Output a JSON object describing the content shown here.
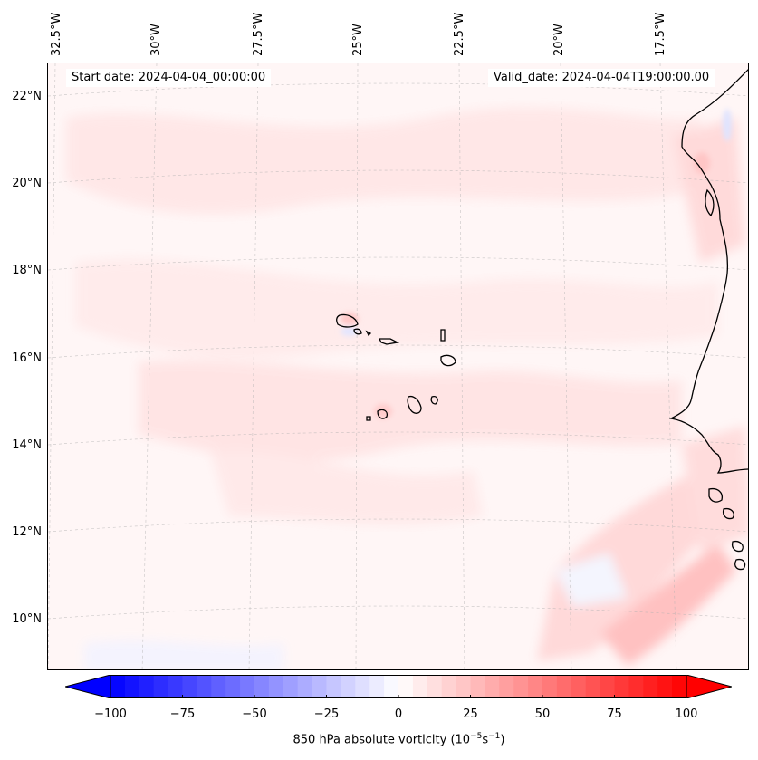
{
  "map": {
    "projection": "regional",
    "longitude_labels": [
      "32.5°W",
      "30°W",
      "27.5°W",
      "25°W",
      "22.5°W",
      "20°W",
      "17.5°W"
    ],
    "latitude_labels": [
      "22°N",
      "20°N",
      "18°N",
      "16°N",
      "14°N",
      "12°N",
      "10°N"
    ],
    "start_date": "Start date: 2024-04-04_00:00:00",
    "valid_date": "Valid_date: 2024-04-04T19:00:00.00",
    "field": "850 hPa absolute vorticity",
    "coastline_color": "#000000",
    "gridline_color": "#b0b0b0"
  },
  "colorbar": {
    "min": -100,
    "max": 100,
    "step": 5,
    "tick_labels": [
      "−100",
      "−75",
      "−50",
      "−25",
      "0",
      "25",
      "50",
      "75",
      "100"
    ],
    "tick_values": [
      -100,
      -75,
      -50,
      -25,
      0,
      25,
      50,
      75,
      100
    ],
    "label_prefix": "850 hPa absolute vorticity (10",
    "label_exp1": "−5",
    "label_mid": "s",
    "label_exp2": "−1",
    "label_suffix": ")",
    "low_color": "#0000ff",
    "mid_color": "#ffffff",
    "high_color": "#ff0000"
  }
}
